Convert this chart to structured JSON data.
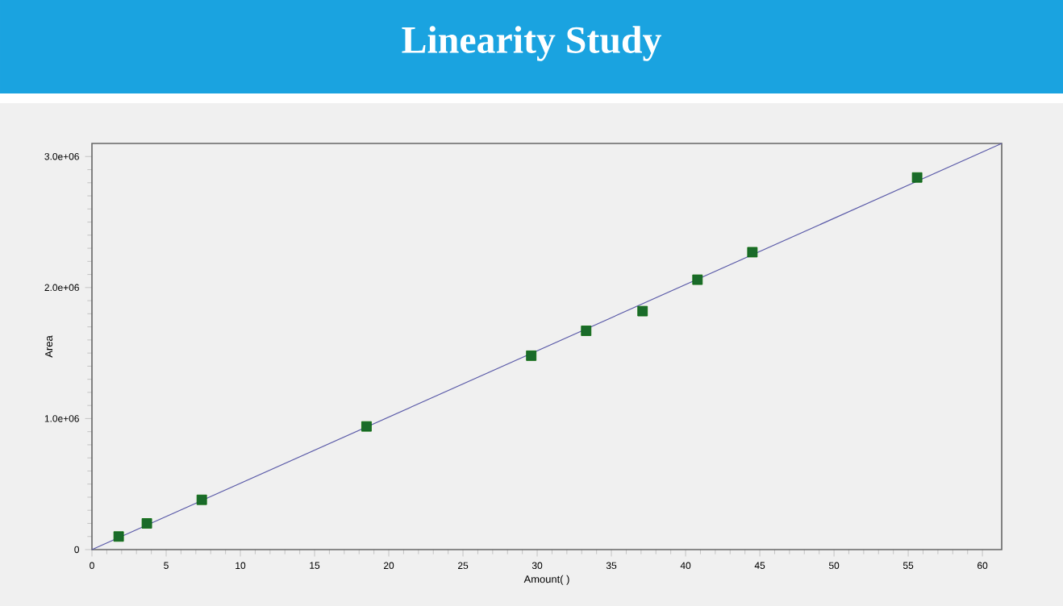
{
  "chart_data": {
    "type": "scatter",
    "title": "Linearity Study",
    "xlabel": "Amount( )",
    "ylabel": "Area",
    "xlim": [
      0,
      61.3
    ],
    "ylim": [
      0,
      3100000
    ],
    "xticks": [
      0,
      5,
      10,
      15,
      20,
      25,
      30,
      35,
      40,
      45,
      50,
      55,
      60
    ],
    "yticks": [
      0,
      {
        "value": 1000000,
        "label": "1.0e+06"
      },
      {
        "value": 2000000,
        "label": "2.0e+06"
      },
      {
        "value": 3000000,
        "label": "3.0e+06"
      }
    ],
    "grid": false,
    "series": [
      {
        "type": "line",
        "color": "#5a5aa8",
        "marker": "none",
        "x": [
          0,
          61.3
        ],
        "values": [
          0,
          3100000
        ]
      },
      {
        "color": "#1a6b2a",
        "marker": "square",
        "x": [
          1.8,
          3.7,
          7.4,
          18.5,
          29.6,
          33.3,
          37.1,
          40.8,
          44.5,
          55.6
        ],
        "values": [
          100000,
          200000,
          380000,
          940000,
          1480000,
          1670000,
          1820000,
          2060000,
          2270000,
          2840000
        ]
      }
    ]
  }
}
